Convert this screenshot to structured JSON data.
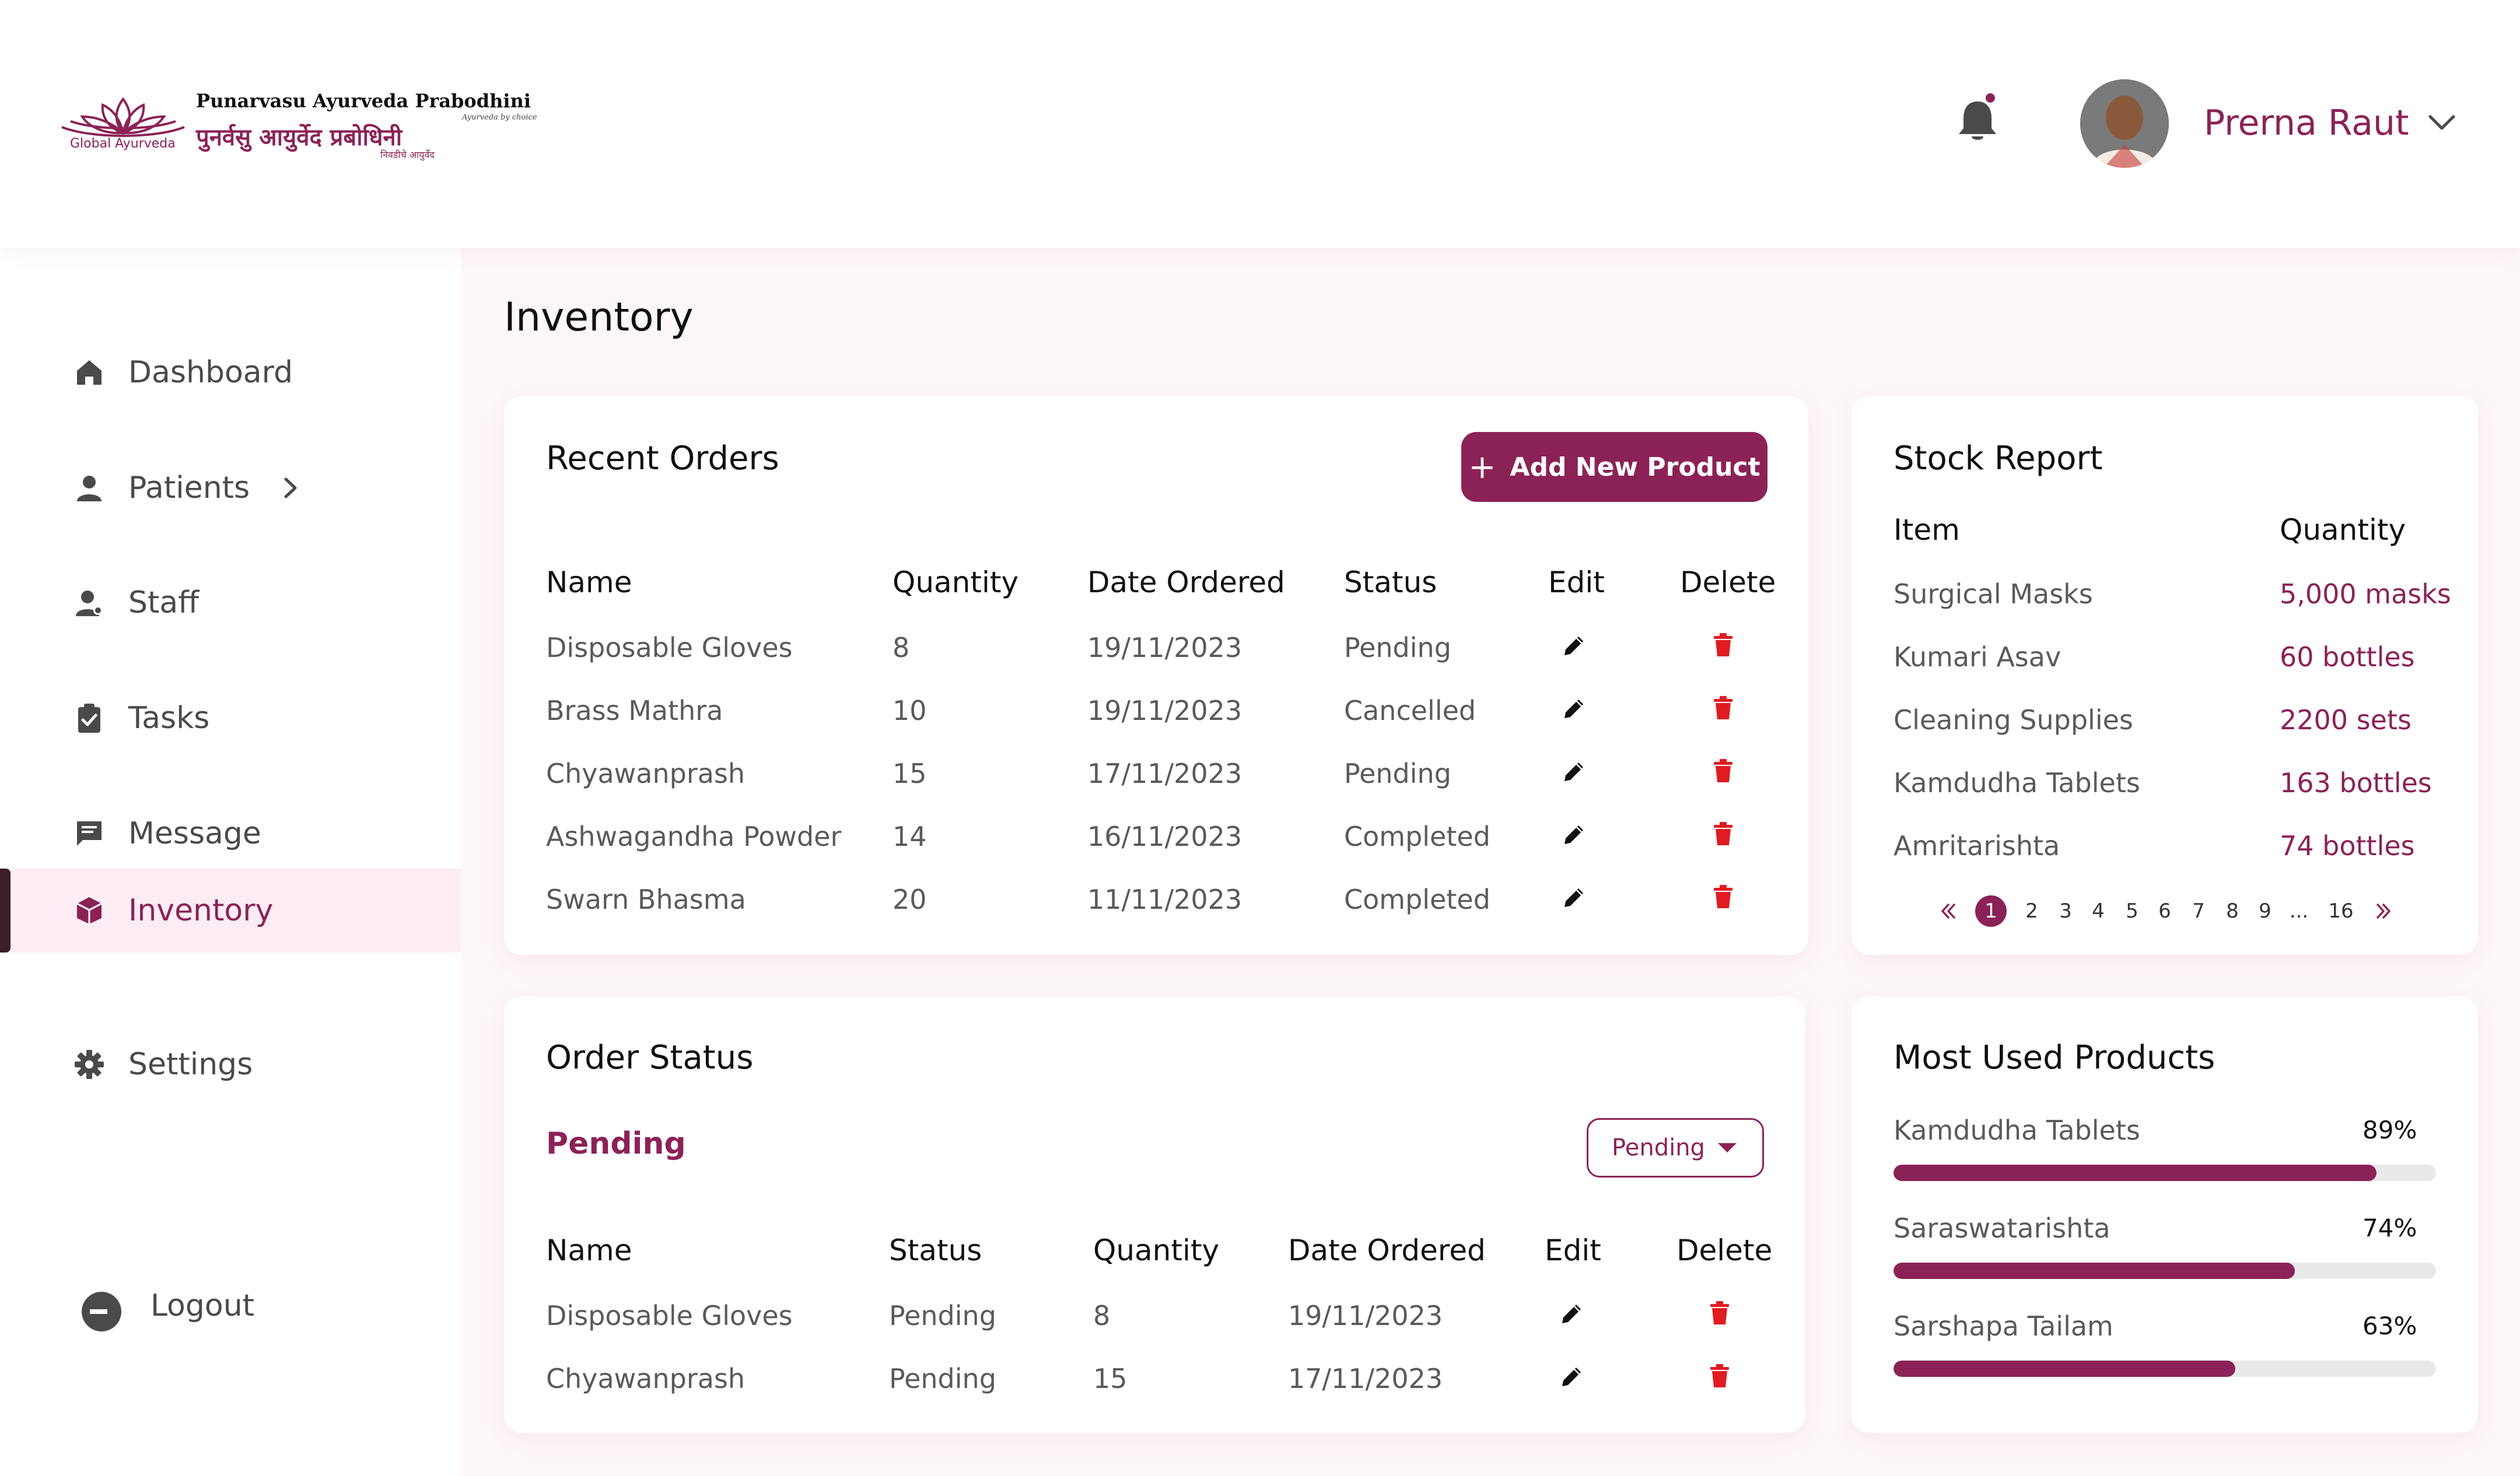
{
  "brand": {
    "name_en": "Punarvasu Ayurveda Prabodhini",
    "name_hi": "पुनर्वसु आयुर्वेद प्रबोधिनी",
    "tagline": "Ayurveda by choice",
    "tagline_hi": "निवडीचे आयुर्वेद",
    "mark_text": "Global Ayurveda",
    "accent": "#8b2257"
  },
  "header": {
    "user_name": "Prerna Raut",
    "bell_icon": "bell-icon",
    "has_notification": true
  },
  "sidebar": {
    "items": [
      {
        "label": "Dashboard",
        "icon": "home-icon"
      },
      {
        "label": "Patients",
        "icon": "person-icon"
      },
      {
        "label": "Staff",
        "icon": "staff-icon"
      },
      {
        "label": "Tasks",
        "icon": "clipboard-icon"
      },
      {
        "label": "Message",
        "icon": "message-icon"
      },
      {
        "label": "Inventory",
        "icon": "cube-icon",
        "active": true
      },
      {
        "label": "Settings",
        "icon": "gear-icon"
      }
    ],
    "logout_label": "Logout"
  },
  "page": {
    "title": "Inventory"
  },
  "recent_orders": {
    "title": "Recent Orders",
    "add_button_label": "Add New Product",
    "columns": [
      "Name",
      "Quantity",
      "Date Ordered",
      "Status",
      "Edit",
      "Delete"
    ],
    "rows": [
      {
        "name": "Disposable Gloves",
        "quantity": "8",
        "date": "19/11/2023",
        "status": "Pending"
      },
      {
        "name": "Brass Mathra",
        "quantity": "10",
        "date": "19/11/2023",
        "status": "Cancelled"
      },
      {
        "name": "Chyawanprash",
        "quantity": "15",
        "date": "17/11/2023",
        "status": "Pending"
      },
      {
        "name": "Ashwagandha Powder",
        "quantity": "14",
        "date": "16/11/2023",
        "status": "Completed"
      },
      {
        "name": "Swarn Bhasma",
        "quantity": "20",
        "date": "11/11/2023",
        "status": "Completed"
      }
    ]
  },
  "stock_report": {
    "title": "Stock Report",
    "columns": [
      "Item",
      "Quantity"
    ],
    "rows": [
      {
        "item": "Surgical Masks",
        "quantity": "5,000 masks"
      },
      {
        "item": "Kumari Asav",
        "quantity": "60 bottles"
      },
      {
        "item": "Cleaning Supplies",
        "quantity": "2200 sets"
      },
      {
        "item": "Kamdudha Tablets",
        "quantity": "163 bottles"
      },
      {
        "item": "Amritarishta",
        "quantity": "74 bottles"
      }
    ],
    "pagination": {
      "pages": [
        "1",
        "2",
        "3",
        "4",
        "5",
        "6",
        "7",
        "8",
        "9",
        "...",
        "16"
      ],
      "current": "1"
    }
  },
  "order_status": {
    "title": "Order Status",
    "filter_label": "Pending",
    "dropdown_value": "Pending",
    "columns": [
      "Name",
      "Status",
      "Quantity",
      "Date Ordered",
      "Edit",
      "Delete"
    ],
    "rows": [
      {
        "name": "Disposable Gloves",
        "status": "Pending",
        "quantity": "8",
        "date": "19/11/2023"
      },
      {
        "name": "Chyawanprash",
        "status": "Pending",
        "quantity": "15",
        "date": "17/11/2023"
      }
    ]
  },
  "most_used": {
    "title": "Most Used Products",
    "items": [
      {
        "name": "Kamdudha Tablets",
        "percent_label": "89%",
        "percent": 89
      },
      {
        "name": "Saraswatarishta",
        "percent_label": "74%",
        "percent": 74
      },
      {
        "name": "Sarshapa Tailam",
        "percent_label": "63%",
        "percent": 63
      }
    ]
  }
}
